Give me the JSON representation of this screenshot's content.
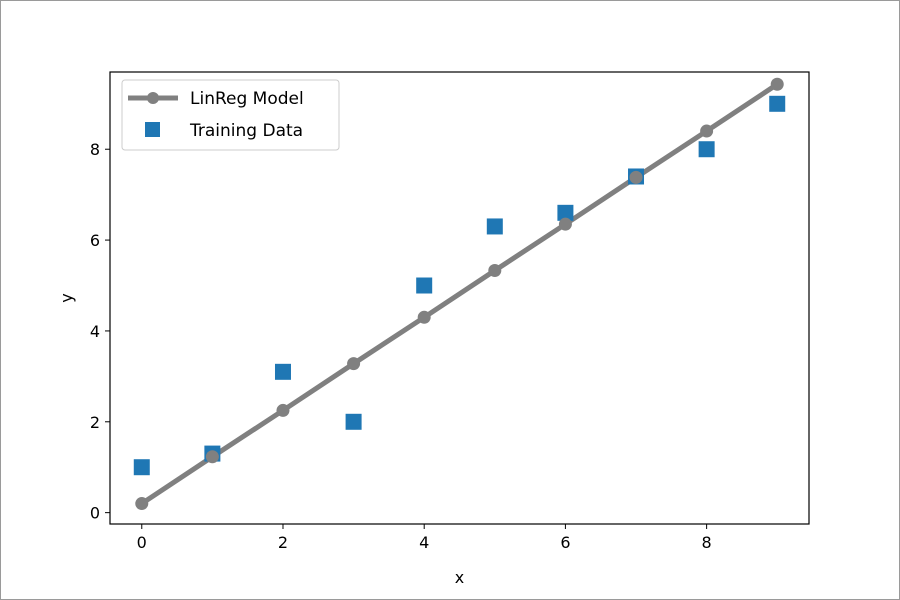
{
  "chart_data": {
    "type": "line",
    "title": "",
    "xlabel": "x",
    "ylabel": "y",
    "xlim": [
      -0.45,
      9.45
    ],
    "ylim": [
      -0.25,
      9.7
    ],
    "x_ticks": [
      0,
      2,
      4,
      6,
      8
    ],
    "y_ticks": [
      0,
      2,
      4,
      6,
      8
    ],
    "grid": false,
    "legend_position": "upper-left",
    "series": [
      {
        "name": "LinReg Model",
        "kind": "line-with-markers",
        "color": "#808080",
        "x": [
          0,
          1,
          2,
          3,
          4,
          5,
          6,
          7,
          8,
          9
        ],
        "y": [
          0.2,
          1.23,
          2.25,
          3.28,
          4.3,
          5.33,
          6.35,
          7.38,
          8.4,
          9.43
        ]
      },
      {
        "name": "Training Data",
        "kind": "scatter-square",
        "color": "#1f77b4",
        "x": [
          0,
          1,
          2,
          3,
          4,
          5,
          6,
          7,
          8,
          9
        ],
        "y": [
          1.0,
          1.3,
          3.1,
          2.0,
          5.0,
          6.3,
          6.6,
          7.4,
          8.0,
          9.0
        ]
      }
    ]
  }
}
